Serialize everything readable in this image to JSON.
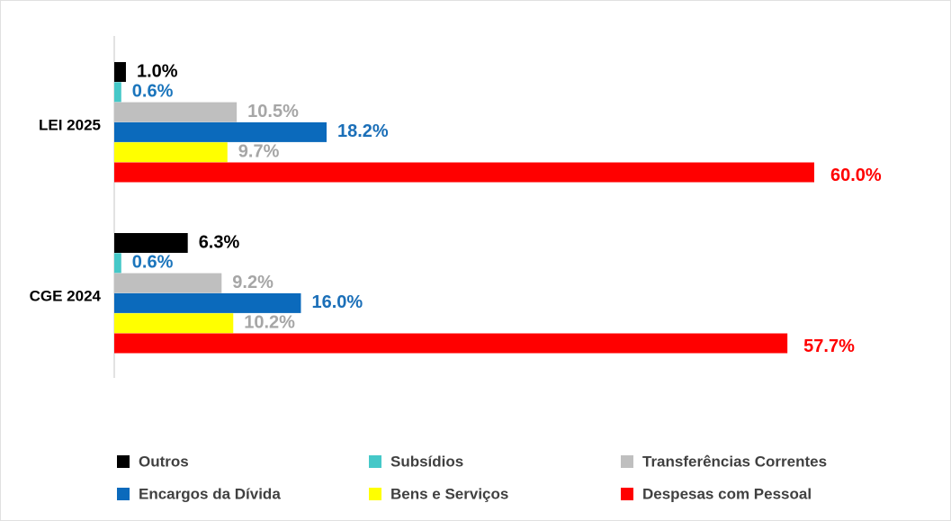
{
  "chart_data": {
    "type": "bar",
    "orientation": "horizontal",
    "categories": [
      "LEI  2025",
      "CGE 2024"
    ],
    "series": [
      {
        "name": "Outros",
        "color": "#000000",
        "label_color": "#000000",
        "values": [
          1.0,
          6.3
        ],
        "value_labels": [
          "1.0%",
          "6.3%"
        ]
      },
      {
        "name": "Subsídios",
        "color": "#45c8c8",
        "label_color": "#1b75bc",
        "values": [
          0.6,
          0.6
        ],
        "value_labels": [
          "0.6%",
          "0.6%"
        ]
      },
      {
        "name": "Transferências Correntes",
        "color": "#bfbfbf",
        "label_color": "#a6a6a6",
        "values": [
          10.5,
          9.2
        ],
        "value_labels": [
          "10.5%",
          "9.2%"
        ]
      },
      {
        "name": "Encargos da Dívida",
        "color": "#0b6abc",
        "label_color": "#1b6fb8",
        "values": [
          18.2,
          16.0
        ],
        "value_labels": [
          "18.2%",
          "16.0%"
        ]
      },
      {
        "name": "Bens e Serviços",
        "color": "#ffff00",
        "label_color": "#a6a6a6",
        "values": [
          9.7,
          10.2
        ],
        "value_labels": [
          "9.7%",
          "10.2%"
        ]
      },
      {
        "name": "Despesas com Pessoal",
        "color": "#ff0000",
        "label_color": "#ff0000",
        "values": [
          60.0,
          57.7
        ],
        "value_labels": [
          "60.0%",
          "57.7%"
        ]
      }
    ],
    "legend": "bottom"
  }
}
